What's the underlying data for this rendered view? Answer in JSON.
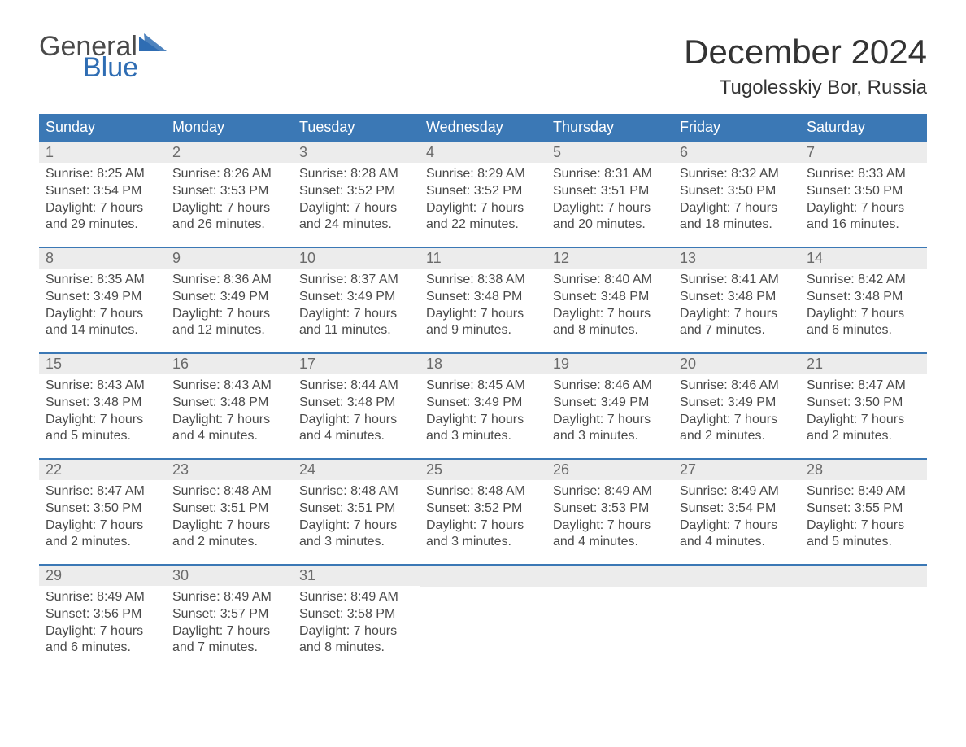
{
  "logo": {
    "word1": "General",
    "word2": "Blue"
  },
  "title": "December 2024",
  "location": "Tugolesskiy Bor, Russia",
  "colors": {
    "header_bg": "#3b78b5",
    "header_text": "#ffffff",
    "daynum_bg": "#ececec",
    "daynum_text": "#6a6a6a",
    "body_text": "#4a4a4a",
    "rule": "#3b78b5",
    "logo_accent": "#2f6db3"
  },
  "day_headers": [
    "Sunday",
    "Monday",
    "Tuesday",
    "Wednesday",
    "Thursday",
    "Friday",
    "Saturday"
  ],
  "weeks": [
    [
      {
        "n": "1",
        "sr": "Sunrise: 8:25 AM",
        "ss": "Sunset: 3:54 PM",
        "d1": "Daylight: 7 hours",
        "d2": "and 29 minutes."
      },
      {
        "n": "2",
        "sr": "Sunrise: 8:26 AM",
        "ss": "Sunset: 3:53 PM",
        "d1": "Daylight: 7 hours",
        "d2": "and 26 minutes."
      },
      {
        "n": "3",
        "sr": "Sunrise: 8:28 AM",
        "ss": "Sunset: 3:52 PM",
        "d1": "Daylight: 7 hours",
        "d2": "and 24 minutes."
      },
      {
        "n": "4",
        "sr": "Sunrise: 8:29 AM",
        "ss": "Sunset: 3:52 PM",
        "d1": "Daylight: 7 hours",
        "d2": "and 22 minutes."
      },
      {
        "n": "5",
        "sr": "Sunrise: 8:31 AM",
        "ss": "Sunset: 3:51 PM",
        "d1": "Daylight: 7 hours",
        "d2": "and 20 minutes."
      },
      {
        "n": "6",
        "sr": "Sunrise: 8:32 AM",
        "ss": "Sunset: 3:50 PM",
        "d1": "Daylight: 7 hours",
        "d2": "and 18 minutes."
      },
      {
        "n": "7",
        "sr": "Sunrise: 8:33 AM",
        "ss": "Sunset: 3:50 PM",
        "d1": "Daylight: 7 hours",
        "d2": "and 16 minutes."
      }
    ],
    [
      {
        "n": "8",
        "sr": "Sunrise: 8:35 AM",
        "ss": "Sunset: 3:49 PM",
        "d1": "Daylight: 7 hours",
        "d2": "and 14 minutes."
      },
      {
        "n": "9",
        "sr": "Sunrise: 8:36 AM",
        "ss": "Sunset: 3:49 PM",
        "d1": "Daylight: 7 hours",
        "d2": "and 12 minutes."
      },
      {
        "n": "10",
        "sr": "Sunrise: 8:37 AM",
        "ss": "Sunset: 3:49 PM",
        "d1": "Daylight: 7 hours",
        "d2": "and 11 minutes."
      },
      {
        "n": "11",
        "sr": "Sunrise: 8:38 AM",
        "ss": "Sunset: 3:48 PM",
        "d1": "Daylight: 7 hours",
        "d2": "and 9 minutes."
      },
      {
        "n": "12",
        "sr": "Sunrise: 8:40 AM",
        "ss": "Sunset: 3:48 PM",
        "d1": "Daylight: 7 hours",
        "d2": "and 8 minutes."
      },
      {
        "n": "13",
        "sr": "Sunrise: 8:41 AM",
        "ss": "Sunset: 3:48 PM",
        "d1": "Daylight: 7 hours",
        "d2": "and 7 minutes."
      },
      {
        "n": "14",
        "sr": "Sunrise: 8:42 AM",
        "ss": "Sunset: 3:48 PM",
        "d1": "Daylight: 7 hours",
        "d2": "and 6 minutes."
      }
    ],
    [
      {
        "n": "15",
        "sr": "Sunrise: 8:43 AM",
        "ss": "Sunset: 3:48 PM",
        "d1": "Daylight: 7 hours",
        "d2": "and 5 minutes."
      },
      {
        "n": "16",
        "sr": "Sunrise: 8:43 AM",
        "ss": "Sunset: 3:48 PM",
        "d1": "Daylight: 7 hours",
        "d2": "and 4 minutes."
      },
      {
        "n": "17",
        "sr": "Sunrise: 8:44 AM",
        "ss": "Sunset: 3:48 PM",
        "d1": "Daylight: 7 hours",
        "d2": "and 4 minutes."
      },
      {
        "n": "18",
        "sr": "Sunrise: 8:45 AM",
        "ss": "Sunset: 3:49 PM",
        "d1": "Daylight: 7 hours",
        "d2": "and 3 minutes."
      },
      {
        "n": "19",
        "sr": "Sunrise: 8:46 AM",
        "ss": "Sunset: 3:49 PM",
        "d1": "Daylight: 7 hours",
        "d2": "and 3 minutes."
      },
      {
        "n": "20",
        "sr": "Sunrise: 8:46 AM",
        "ss": "Sunset: 3:49 PM",
        "d1": "Daylight: 7 hours",
        "d2": "and 2 minutes."
      },
      {
        "n": "21",
        "sr": "Sunrise: 8:47 AM",
        "ss": "Sunset: 3:50 PM",
        "d1": "Daylight: 7 hours",
        "d2": "and 2 minutes."
      }
    ],
    [
      {
        "n": "22",
        "sr": "Sunrise: 8:47 AM",
        "ss": "Sunset: 3:50 PM",
        "d1": "Daylight: 7 hours",
        "d2": "and 2 minutes."
      },
      {
        "n": "23",
        "sr": "Sunrise: 8:48 AM",
        "ss": "Sunset: 3:51 PM",
        "d1": "Daylight: 7 hours",
        "d2": "and 2 minutes."
      },
      {
        "n": "24",
        "sr": "Sunrise: 8:48 AM",
        "ss": "Sunset: 3:51 PM",
        "d1": "Daylight: 7 hours",
        "d2": "and 3 minutes."
      },
      {
        "n": "25",
        "sr": "Sunrise: 8:48 AM",
        "ss": "Sunset: 3:52 PM",
        "d1": "Daylight: 7 hours",
        "d2": "and 3 minutes."
      },
      {
        "n": "26",
        "sr": "Sunrise: 8:49 AM",
        "ss": "Sunset: 3:53 PM",
        "d1": "Daylight: 7 hours",
        "d2": "and 4 minutes."
      },
      {
        "n": "27",
        "sr": "Sunrise: 8:49 AM",
        "ss": "Sunset: 3:54 PM",
        "d1": "Daylight: 7 hours",
        "d2": "and 4 minutes."
      },
      {
        "n": "28",
        "sr": "Sunrise: 8:49 AM",
        "ss": "Sunset: 3:55 PM",
        "d1": "Daylight: 7 hours",
        "d2": "and 5 minutes."
      }
    ],
    [
      {
        "n": "29",
        "sr": "Sunrise: 8:49 AM",
        "ss": "Sunset: 3:56 PM",
        "d1": "Daylight: 7 hours",
        "d2": "and 6 minutes."
      },
      {
        "n": "30",
        "sr": "Sunrise: 8:49 AM",
        "ss": "Sunset: 3:57 PM",
        "d1": "Daylight: 7 hours",
        "d2": "and 7 minutes."
      },
      {
        "n": "31",
        "sr": "Sunrise: 8:49 AM",
        "ss": "Sunset: 3:58 PM",
        "d1": "Daylight: 7 hours",
        "d2": "and 8 minutes."
      },
      null,
      null,
      null,
      null
    ]
  ]
}
